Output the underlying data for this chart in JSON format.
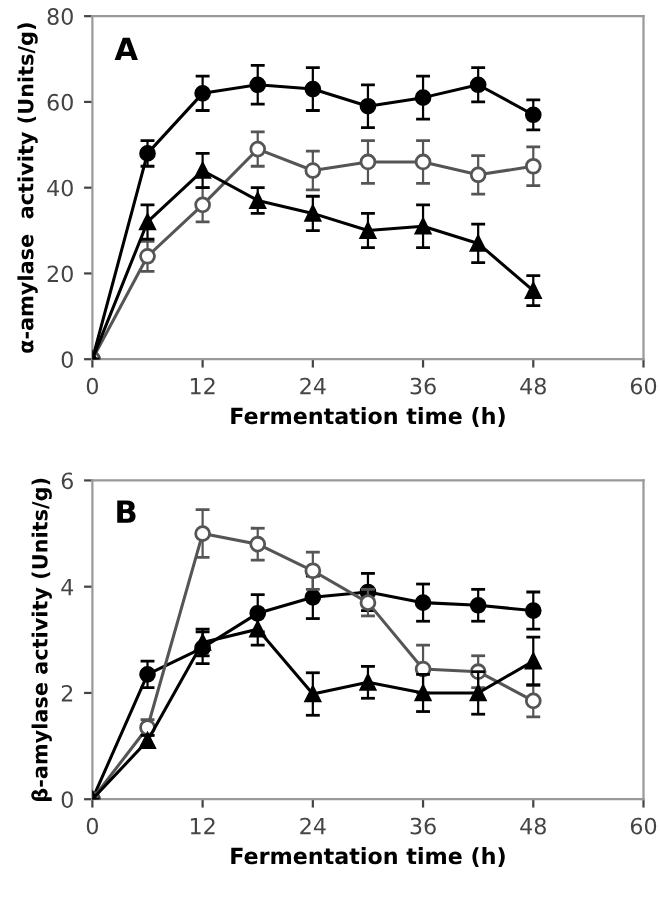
{
  "chart_data": [
    {
      "type": "line",
      "xlabel": "Fermentation time (h)",
      "ylabel": "α-amylase  activity (Units/g)",
      "annotations": [
        "A"
      ],
      "x": [
        0,
        6,
        12,
        18,
        24,
        30,
        36,
        42,
        48
      ],
      "xlim": [
        0,
        60
      ],
      "xticks": [
        0,
        12,
        24,
        36,
        48,
        60
      ],
      "ylim": [
        0,
        80
      ],
      "yticks": [
        0,
        20,
        40,
        60,
        80
      ],
      "grid": false,
      "legend": false,
      "line_style": "solid",
      "series": [
        {
          "color": "#000000",
          "marker": "circle",
          "values": [
            0,
            48,
            62,
            64,
            63,
            59,
            61,
            64,
            57
          ],
          "errors": [
            0,
            3,
            4,
            4.5,
            5,
            5,
            5,
            4,
            3.5
          ]
        },
        {
          "color": "#555555",
          "marker": "circle",
          "values": [
            0,
            24,
            36,
            49,
            44,
            46,
            46,
            43,
            45
          ],
          "errors": [
            0,
            3.5,
            4,
            4,
            4.5,
            5,
            5,
            4.5,
            4.5
          ]
        },
        {
          "color": "#000000",
          "marker": "triangle",
          "values": [
            0,
            32,
            44,
            37,
            34,
            30,
            31,
            27,
            16
          ],
          "errors": [
            0,
            4,
            4,
            3,
            4,
            4,
            5,
            4.5,
            3.5
          ]
        }
      ]
    },
    {
      "type": "line",
      "xlabel": "Fermentation time (h)",
      "ylabel": "β-amylase activity (Units/g)",
      "annotations": [
        "B"
      ],
      "x": [
        0,
        6,
        12,
        18,
        24,
        30,
        36,
        42,
        48
      ],
      "xlim": [
        0,
        60
      ],
      "xticks": [
        0,
        12,
        24,
        36,
        48,
        60
      ],
      "ylim": [
        0,
        6
      ],
      "yticks": [
        0,
        2,
        4,
        6
      ],
      "grid": false,
      "legend": false,
      "line_style": "solid",
      "series": [
        {
          "color": "#000000",
          "marker": "circle",
          "values": [
            0,
            2.35,
            2.85,
            3.5,
            3.8,
            3.9,
            3.7,
            3.65,
            3.55
          ],
          "errors": [
            0,
            0.25,
            0.3,
            0.35,
            0.4,
            0.35,
            0.35,
            0.3,
            0.35
          ]
        },
        {
          "color": "#555555",
          "marker": "circle",
          "values": [
            0,
            1.35,
            5.0,
            4.8,
            4.3,
            3.7,
            2.45,
            2.4,
            1.85
          ],
          "errors": [
            0,
            0.15,
            0.45,
            0.3,
            0.35,
            0.25,
            0.45,
            0.3,
            0.3
          ]
        },
        {
          "color": "#000000",
          "marker": "triangle",
          "values": [
            0,
            1.1,
            2.95,
            3.2,
            1.98,
            2.2,
            2.0,
            2.0,
            2.6
          ],
          "errors": [
            0,
            0.1,
            0.25,
            0.3,
            0.4,
            0.3,
            0.35,
            0.4,
            0.45
          ]
        }
      ]
    }
  ]
}
